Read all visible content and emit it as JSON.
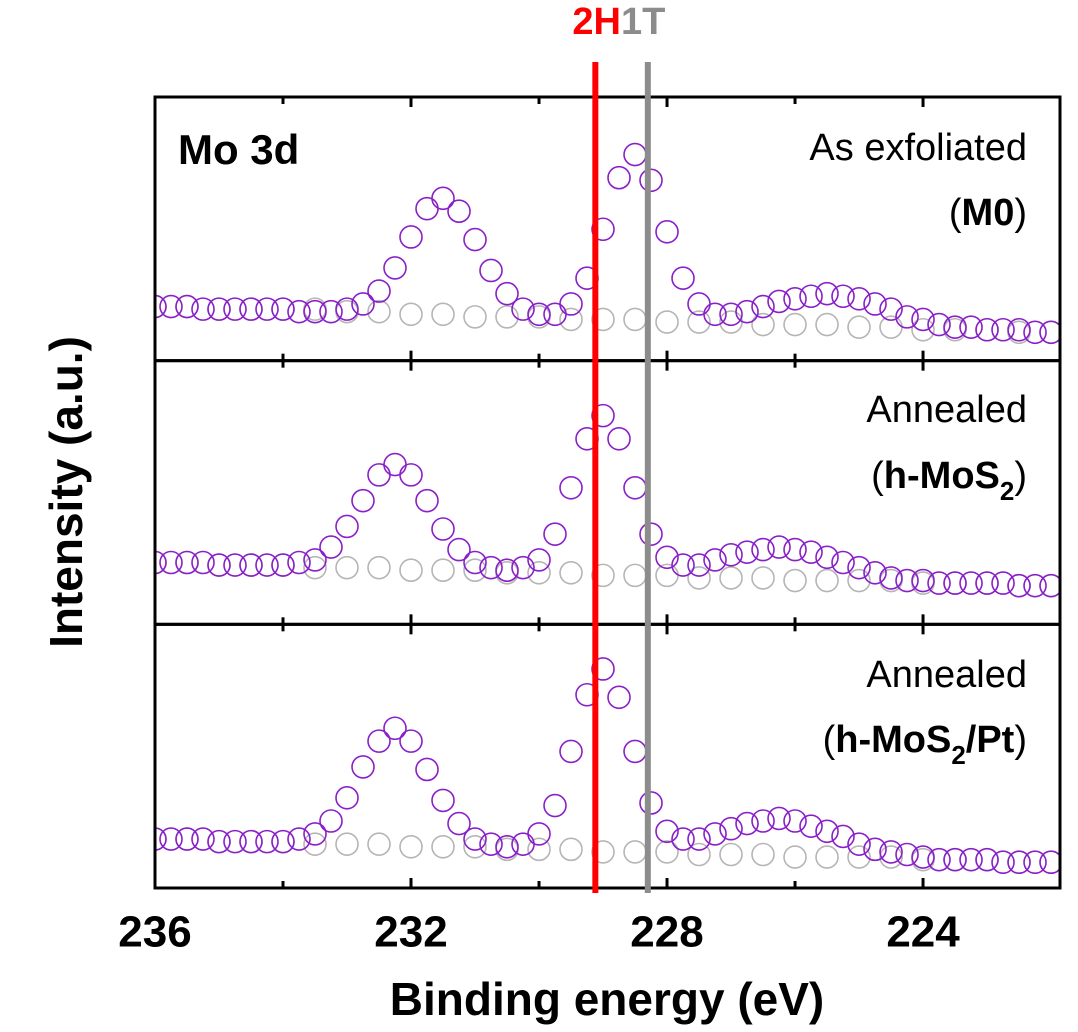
{
  "chart_data": {
    "type": "scatter",
    "xlabel": "Binding energy (eV)",
    "ylabel": "Intensity (a.u.)",
    "xlim": [
      236,
      221.86
    ],
    "xticks": [
      236,
      232,
      228,
      224
    ],
    "xminorticks": [
      234,
      230,
      226
    ],
    "vlines": [
      {
        "label": "2H",
        "x": 229.12,
        "color": "#ff0000"
      },
      {
        "label": "1T",
        "x": 228.3,
        "color": "#8c8c8c"
      }
    ],
    "panels": [
      {
        "label": "Mo 3d",
        "condition": "As exfoliated",
        "sample": [
          "(",
          "M0",
          ")"
        ],
        "ylim": [
          0,
          1
        ],
        "series": [
          {
            "color": "#b5b5b5",
            "x": [
              236,
              235.5,
              235,
              234.5,
              234,
              233.5,
              233,
              232.5,
              232,
              231.5,
              231,
              230.5,
              230,
              229.5,
              229,
              228.5,
              228,
              227.5,
              227,
              226.5,
              226,
              225.5,
              225,
              224.5,
              224,
              223.5,
              223,
              222.5,
              222
            ],
            "values": [
              0.21,
              0.21,
              0.2,
              0.2,
              0.2,
              0.2,
              0.19,
              0.19,
              0.18,
              0.18,
              0.17,
              0.17,
              0.17,
              0.16,
              0.16,
              0.16,
              0.15,
              0.15,
              0.15,
              0.14,
              0.14,
              0.14,
              0.13,
              0.13,
              0.12,
              0.12,
              0.12,
              0.11,
              0.11
            ]
          },
          {
            "color": "#8a1fc8",
            "x": [
              236,
              235.75,
              235.5,
              235.25,
              235,
              234.75,
              234.5,
              234.25,
              234,
              233.75,
              233.5,
              233.25,
              233,
              232.75,
              232.5,
              232.25,
              232,
              231.75,
              231.5,
              231.25,
              231,
              230.75,
              230.5,
              230.25,
              230,
              229.75,
              229.5,
              229.25,
              229,
              228.75,
              228.5,
              228.25,
              228,
              227.75,
              227.5,
              227.25,
              227,
              226.75,
              226.5,
              226.25,
              226,
              225.75,
              225.5,
              225.25,
              225,
              224.75,
              224.5,
              224.25,
              224,
              223.75,
              223.5,
              223.25,
              223,
              222.75,
              222.5,
              222.25,
              222
            ],
            "values": [
              0.21,
              0.21,
              0.21,
              0.2,
              0.2,
              0.2,
              0.2,
              0.2,
              0.2,
              0.19,
              0.19,
              0.19,
              0.2,
              0.22,
              0.27,
              0.36,
              0.48,
              0.59,
              0.63,
              0.58,
              0.47,
              0.35,
              0.26,
              0.2,
              0.18,
              0.18,
              0.22,
              0.32,
              0.51,
              0.71,
              0.8,
              0.7,
              0.5,
              0.32,
              0.22,
              0.18,
              0.18,
              0.19,
              0.21,
              0.23,
              0.24,
              0.25,
              0.26,
              0.25,
              0.24,
              0.22,
              0.2,
              0.17,
              0.16,
              0.14,
              0.13,
              0.13,
              0.12,
              0.12,
              0.12,
              0.11,
              0.11
            ]
          }
        ]
      },
      {
        "condition": "Annealed",
        "sample": [
          "(",
          "h-MoS",
          "2",
          ")"
        ],
        "ylim": [
          0,
          1
        ],
        "series": [
          {
            "color": "#b5b5b5",
            "x": [
              236,
              235.5,
              235,
              234.5,
              234,
              233.5,
              233,
              232.5,
              232,
              231.5,
              231,
              230.5,
              230,
              229.5,
              229,
              228.5,
              228,
              227.5,
              227,
              226.5,
              226,
              225.5,
              225,
              224.5,
              224,
              223.5,
              223,
              222.5,
              222
            ],
            "values": [
              0.24,
              0.24,
              0.23,
              0.23,
              0.23,
              0.22,
              0.22,
              0.22,
              0.21,
              0.21,
              0.21,
              0.2,
              0.2,
              0.2,
              0.19,
              0.19,
              0.19,
              0.18,
              0.18,
              0.18,
              0.17,
              0.17,
              0.17,
              0.17,
              0.16,
              0.16,
              0.16,
              0.15,
              0.15
            ]
          },
          {
            "color": "#8a1fc8",
            "x": [
              236,
              235.75,
              235.5,
              235.25,
              235,
              234.75,
              234.5,
              234.25,
              234,
              233.75,
              233.5,
              233.25,
              233,
              232.75,
              232.5,
              232.25,
              232,
              231.75,
              231.5,
              231.25,
              231,
              230.75,
              230.5,
              230.25,
              230,
              229.75,
              229.5,
              229.25,
              229,
              228.75,
              228.5,
              228.25,
              228,
              227.75,
              227.5,
              227.25,
              227,
              226.75,
              226.5,
              226.25,
              226,
              225.75,
              225.5,
              225.25,
              225,
              224.75,
              224.5,
              224.25,
              224,
              223.75,
              223.5,
              223.25,
              223,
              222.75,
              222.5,
              222.25,
              222
            ],
            "values": [
              0.24,
              0.24,
              0.24,
              0.24,
              0.23,
              0.23,
              0.23,
              0.23,
              0.23,
              0.24,
              0.25,
              0.3,
              0.38,
              0.48,
              0.58,
              0.62,
              0.58,
              0.48,
              0.37,
              0.29,
              0.24,
              0.22,
              0.21,
              0.22,
              0.25,
              0.35,
              0.53,
              0.72,
              0.81,
              0.72,
              0.53,
              0.35,
              0.26,
              0.23,
              0.23,
              0.25,
              0.27,
              0.28,
              0.29,
              0.3,
              0.29,
              0.28,
              0.26,
              0.24,
              0.22,
              0.2,
              0.18,
              0.17,
              0.17,
              0.16,
              0.16,
              0.16,
              0.16,
              0.16,
              0.15,
              0.15,
              0.15
            ]
          }
        ]
      },
      {
        "condition": "Annealed",
        "sample": [
          "(",
          "h-MoS",
          "2",
          "/Pt",
          ")"
        ],
        "ylim": [
          0,
          1
        ],
        "series": [
          {
            "color": "#b5b5b5",
            "x": [
              236,
              235.5,
              235,
              234.5,
              234,
              233.5,
              233,
              232.5,
              232,
              231.5,
              231,
              230.5,
              230,
              229.5,
              229,
              228.5,
              228,
              227.5,
              227,
              226.5,
              226,
              225.5,
              225,
              224.5,
              224,
              223.5,
              223,
              222.5,
              222
            ],
            "values": [
              0.19,
              0.19,
              0.18,
              0.18,
              0.18,
              0.17,
              0.17,
              0.17,
              0.16,
              0.16,
              0.16,
              0.15,
              0.15,
              0.15,
              0.14,
              0.14,
              0.14,
              0.13,
              0.13,
              0.13,
              0.12,
              0.12,
              0.12,
              0.12,
              0.11,
              0.11,
              0.11,
              0.1,
              0.1
            ]
          },
          {
            "color": "#8a1fc8",
            "x": [
              236,
              235.75,
              235.5,
              235.25,
              235,
              234.75,
              234.5,
              234.25,
              234,
              233.75,
              233.5,
              233.25,
              233,
              232.75,
              232.5,
              232.25,
              232,
              231.75,
              231.5,
              231.25,
              231,
              230.75,
              230.5,
              230.25,
              230,
              229.75,
              229.5,
              229.25,
              229,
              228.75,
              228.5,
              228.25,
              228,
              227.75,
              227.5,
              227.25,
              227,
              226.75,
              226.5,
              226.25,
              226,
              225.75,
              225.5,
              225.25,
              225,
              224.75,
              224.5,
              224.25,
              224,
              223.75,
              223.5,
              223.25,
              223,
              222.75,
              222.5,
              222.25,
              222
            ],
            "values": [
              0.19,
              0.19,
              0.19,
              0.19,
              0.18,
              0.18,
              0.18,
              0.18,
              0.18,
              0.19,
              0.21,
              0.26,
              0.35,
              0.47,
              0.57,
              0.62,
              0.57,
              0.46,
              0.34,
              0.25,
              0.19,
              0.17,
              0.16,
              0.17,
              0.21,
              0.32,
              0.53,
              0.75,
              0.85,
              0.74,
              0.53,
              0.33,
              0.22,
              0.19,
              0.19,
              0.21,
              0.23,
              0.25,
              0.26,
              0.27,
              0.26,
              0.24,
              0.22,
              0.2,
              0.17,
              0.15,
              0.14,
              0.13,
              0.12,
              0.11,
              0.11,
              0.11,
              0.11,
              0.1,
              0.1,
              0.1,
              0.1
            ]
          }
        ]
      }
    ]
  }
}
